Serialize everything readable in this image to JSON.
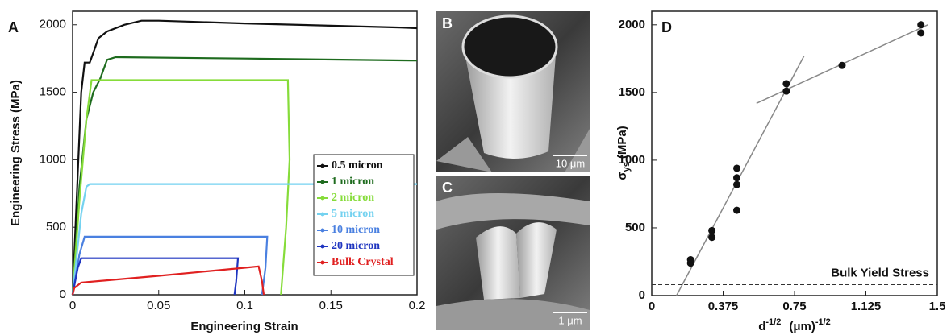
{
  "chart_data": [
    {
      "type": "line",
      "panel": "A",
      "xlabel": "Engineering Strain",
      "ylabel": "Engineering Stress (MPa)",
      "xlim": [
        0,
        0.2
      ],
      "ylim": [
        0,
        2100
      ],
      "xticks": [
        0,
        0.05,
        0.1,
        0.15,
        0.2
      ],
      "yticks": [
        0,
        500,
        1000,
        1500,
        2000
      ],
      "legend": "right",
      "series": [
        {
          "name": "0.5 micron",
          "color": "#111111",
          "x": [
            0,
            0.003,
            0.005,
            0.007,
            0.01,
            0.015,
            0.02,
            0.03,
            0.04,
            0.05,
            0.1,
            0.19,
            0.2
          ],
          "values": [
            0,
            900,
            1500,
            1720,
            1720,
            1900,
            1950,
            2000,
            2030,
            2030,
            2010,
            1980,
            1975
          ]
        },
        {
          "name": "1 micron",
          "color": "#1e6b1e",
          "x": [
            0,
            0.004,
            0.008,
            0.012,
            0.016,
            0.02,
            0.025,
            0.1,
            0.2
          ],
          "values": [
            0,
            800,
            1300,
            1500,
            1600,
            1740,
            1760,
            1750,
            1735
          ]
        },
        {
          "name": "2 micron",
          "color": "#86dc3a",
          "x": [
            0,
            0.004,
            0.008,
            0.011,
            0.05,
            0.125,
            0.126,
            0.124,
            0.121
          ],
          "values": [
            0,
            700,
            1300,
            1590,
            1590,
            1590,
            1000,
            500,
            0
          ]
        },
        {
          "name": "5 micron",
          "color": "#74d2f0",
          "x": [
            0,
            0.005,
            0.008,
            0.01,
            0.2
          ],
          "values": [
            0,
            600,
            800,
            820,
            820
          ]
        },
        {
          "name": "10 micron",
          "color": "#4a80e0",
          "x": [
            0,
            0.004,
            0.007,
            0.11,
            0.113,
            0.112,
            0.11
          ],
          "values": [
            0,
            300,
            430,
            430,
            430,
            200,
            0
          ]
        },
        {
          "name": "20 micron",
          "color": "#1f35c0",
          "x": [
            0,
            0.003,
            0.005,
            0.096,
            0.095,
            0.094
          ],
          "values": [
            0,
            200,
            270,
            270,
            100,
            0
          ]
        },
        {
          "name": "Bulk Crystal",
          "color": "#e02020",
          "x": [
            0,
            0.001,
            0.005,
            0.05,
            0.1,
            0.108,
            0.11,
            0.111
          ],
          "values": [
            0,
            50,
            90,
            140,
            200,
            210,
            100,
            0
          ]
        }
      ]
    },
    {
      "type": "scatter",
      "panel": "D",
      "xlabel": {
        "symbol": "d",
        "power": "-1/2",
        "unit": "(μm)",
        "unit_power": "-1/2"
      },
      "ylabel": {
        "symbol": "σ",
        "subscript": "ys",
        "unit": "(MPa)"
      },
      "xlim": [
        0,
        1.5
      ],
      "ylim": [
        0,
        2100
      ],
      "xticks": [
        0,
        0.375,
        0.75,
        1.125,
        1.5
      ],
      "yticks": [
        0,
        500,
        1000,
        1500,
        2000
      ],
      "color": "#111111",
      "x": [
        0.204,
        0.204,
        0.316,
        0.316,
        0.447,
        0.447,
        0.447,
        0.447,
        0.707,
        0.707,
        1.0,
        1.414,
        1.414
      ],
      "values": [
        240,
        265,
        430,
        480,
        630,
        820,
        870,
        940,
        1510,
        1565,
        1700,
        1940,
        2000
      ],
      "fit_lines": [
        {
          "x": [
            0.13,
            0.8
          ],
          "values": [
            0,
            1770
          ]
        },
        {
          "x": [
            0.55,
            1.45
          ],
          "values": [
            1420,
            2000
          ]
        }
      ],
      "reference_line": {
        "value": 80,
        "label": "Bulk Yield Stress"
      }
    }
  ],
  "images": [
    {
      "label": "B",
      "scale_bar": "10 μm"
    },
    {
      "label": "C",
      "scale_bar": "1 μm"
    }
  ]
}
